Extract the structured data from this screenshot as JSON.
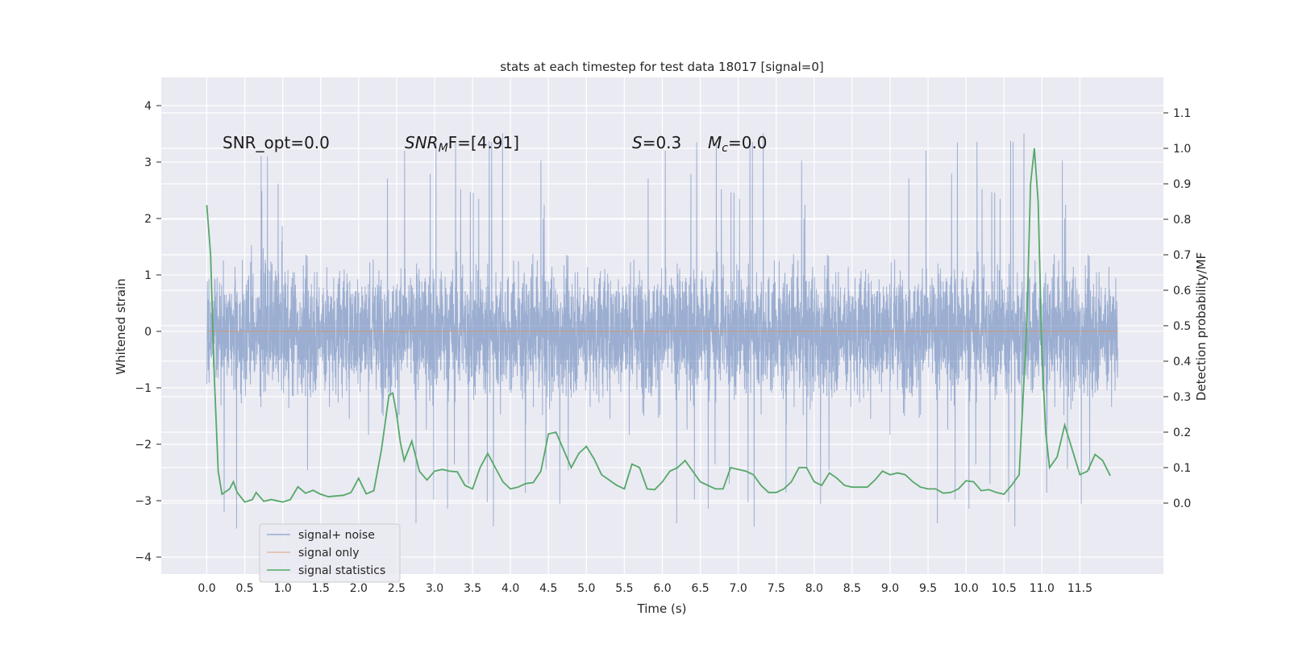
{
  "chart_data": {
    "type": "line",
    "title": "stats at each timestep for test data 18017 [signal=0]",
    "xlabel": "Time (s)",
    "ylabel_left": "Whitened strain",
    "ylabel_right": "Detection probability/MF",
    "xlim": [
      -0.6,
      12.6
    ],
    "ylim_left": [
      -4.3,
      4.5
    ],
    "ylim_right": [
      -0.2,
      1.2
    ],
    "x_ticks": [
      0.0,
      0.5,
      1.0,
      1.5,
      2.0,
      2.5,
      3.0,
      3.5,
      4.0,
      4.5,
      5.0,
      5.5,
      6.0,
      6.5,
      7.0,
      7.5,
      8.0,
      8.5,
      9.0,
      9.5,
      10.0,
      10.5,
      11.0,
      11.5
    ],
    "x_tick_labels": [
      "0.0",
      "0.5",
      "1.0",
      "1.5",
      "2.0",
      "2.5",
      "3.0",
      "3.5",
      "4.0",
      "4.5",
      "5.0",
      "5.5",
      "6.0",
      "6.5",
      "7.0",
      "7.5",
      "8.0",
      "8.5",
      "9.0",
      "9.5",
      "10.0",
      "10.5",
      "11.0",
      "11.5"
    ],
    "y_left_ticks": [
      -4,
      -3,
      -2,
      -1,
      0,
      1,
      2,
      3,
      4
    ],
    "y_left_tick_labels": [
      "−4",
      "−3",
      "−2",
      "−1",
      "0",
      "1",
      "2",
      "3",
      "4"
    ],
    "y_right_ticks": [
      0.0,
      0.1,
      0.2,
      0.3,
      0.4,
      0.5,
      0.6,
      0.7,
      0.8,
      0.9,
      1.0,
      1.1
    ],
    "y_right_tick_labels": [
      "0.0",
      "0.1",
      "0.2",
      "0.3",
      "0.4",
      "0.5",
      "0.6",
      "0.7",
      "0.8",
      "0.9",
      "1.0",
      "1.1"
    ],
    "grid": true,
    "legend_position": "lower-left",
    "annotations": {
      "snr_opt": "SNR_opt=0.0",
      "snr_mf_base": "SNR",
      "snr_mf_sub": "M",
      "snr_mf_rest": "F=[4.91]",
      "s_sym": "S",
      "s_val": "=0.3",
      "mc_sym": "M",
      "mc_sub": "c",
      "mc_val": "=0.0"
    },
    "series": [
      {
        "name": "signal+ noise",
        "axis": "left",
        "color": "#4c72b0",
        "alpha": 0.5,
        "x_range": [
          0.0,
          12.0
        ],
        "core_amplitude": 1.35,
        "peak_range": [
          -3.6,
          4.1
        ]
      },
      {
        "name": "signal only",
        "axis": "left",
        "color": "#dd8452",
        "alpha": 0.5,
        "x": [
          0.0,
          12.0
        ],
        "y": [
          0.0,
          0.0
        ]
      },
      {
        "name": "signal statistics",
        "axis": "right",
        "color": "#55a868",
        "x": [
          0.0,
          0.05,
          0.1,
          0.15,
          0.2,
          0.3,
          0.35,
          0.4,
          0.5,
          0.6,
          0.65,
          0.75,
          0.85,
          1.0,
          1.1,
          1.2,
          1.3,
          1.4,
          1.5,
          1.6,
          1.7,
          1.8,
          1.9,
          2.0,
          2.1,
          2.2,
          2.3,
          2.4,
          2.45,
          2.5,
          2.55,
          2.6,
          2.7,
          2.8,
          2.9,
          3.0,
          3.1,
          3.2,
          3.3,
          3.4,
          3.5,
          3.6,
          3.7,
          3.8,
          3.9,
          4.0,
          4.1,
          4.2,
          4.3,
          4.4,
          4.5,
          4.6,
          4.7,
          4.8,
          4.9,
          5.0,
          5.1,
          5.2,
          5.3,
          5.4,
          5.5,
          5.6,
          5.7,
          5.8,
          5.9,
          6.0,
          6.1,
          6.2,
          6.3,
          6.4,
          6.5,
          6.6,
          6.7,
          6.8,
          6.9,
          7.0,
          7.1,
          7.2,
          7.3,
          7.4,
          7.5,
          7.6,
          7.7,
          7.8,
          7.9,
          8.0,
          8.1,
          8.2,
          8.3,
          8.4,
          8.5,
          8.6,
          8.7,
          8.8,
          8.9,
          9.0,
          9.1,
          9.2,
          9.3,
          9.4,
          9.5,
          9.6,
          9.7,
          9.8,
          9.9,
          10.0,
          10.1,
          10.2,
          10.3,
          10.4,
          10.5,
          10.6,
          10.7,
          10.8,
          10.85,
          10.9,
          10.95,
          11.0,
          11.05,
          11.1,
          11.2,
          11.3,
          11.4,
          11.5,
          11.6,
          11.7,
          11.8,
          11.9
        ],
        "y": [
          0.84,
          0.7,
          0.35,
          0.09,
          0.025,
          0.04,
          0.06,
          0.03,
          0.003,
          0.01,
          0.03,
          0.005,
          0.01,
          0.003,
          0.01,
          0.046,
          0.028,
          0.036,
          0.025,
          0.018,
          0.02,
          0.022,
          0.03,
          0.07,
          0.026,
          0.035,
          0.15,
          0.305,
          0.31,
          0.25,
          0.17,
          0.12,
          0.175,
          0.09,
          0.065,
          0.09,
          0.095,
          0.09,
          0.088,
          0.05,
          0.04,
          0.1,
          0.14,
          0.1,
          0.06,
          0.04,
          0.045,
          0.055,
          0.058,
          0.09,
          0.195,
          0.2,
          0.15,
          0.1,
          0.14,
          0.16,
          0.125,
          0.08,
          0.065,
          0.05,
          0.04,
          0.11,
          0.1,
          0.04,
          0.038,
          0.06,
          0.09,
          0.1,
          0.12,
          0.09,
          0.06,
          0.05,
          0.04,
          0.04,
          0.1,
          0.095,
          0.09,
          0.08,
          0.05,
          0.03,
          0.03,
          0.04,
          0.06,
          0.1,
          0.1,
          0.06,
          0.05,
          0.085,
          0.07,
          0.05,
          0.045,
          0.045,
          0.045,
          0.065,
          0.09,
          0.08,
          0.085,
          0.08,
          0.06,
          0.045,
          0.04,
          0.04,
          0.028,
          0.03,
          0.04,
          0.063,
          0.06,
          0.035,
          0.038,
          0.03,
          0.025,
          0.05,
          0.08,
          0.5,
          0.9,
          1.0,
          0.85,
          0.42,
          0.2,
          0.1,
          0.13,
          0.22,
          0.15,
          0.08,
          0.09,
          0.137,
          0.12,
          0.077
        ]
      }
    ]
  }
}
